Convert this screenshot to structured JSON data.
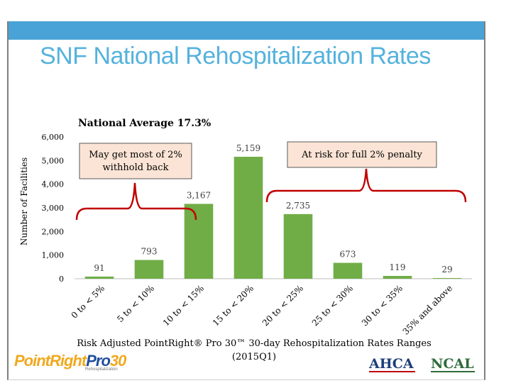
{
  "slide": {
    "title": "SNF National Rehospitalization Rates",
    "colors": {
      "band": "#4aa3d6",
      "title": "#55b2dd",
      "bar": "#70ad47",
      "bracket": "#c00000",
      "callout_fill": "#fbe4d5"
    }
  },
  "logos": {
    "pointright_main": "PointRight",
    "pointright_pro": "Pro",
    "pointright_num": "30",
    "pointright_sub": "Rehospitalization",
    "ahca": "AHCA",
    "ncal": "NCAL"
  },
  "chart_data": {
    "type": "bar",
    "title": "National Average 17.3%",
    "xlabel": "Risk Adjusted PointRight® Pro 30™ 30-day Rehospitalization Rates Ranges",
    "xlabel_sub": "(2015Q1)",
    "ylabel": "Number of Facilities",
    "ylim": [
      0,
      6000
    ],
    "yticks": [
      0,
      1000,
      2000,
      3000,
      4000,
      5000,
      6000
    ],
    "ytick_labels": [
      "0",
      "1,000",
      "2,000",
      "3,000",
      "4,000",
      "5,000",
      "6,000"
    ],
    "categories": [
      "0 to < 5%",
      "5 to < 10%",
      "10 to < 15%",
      "15 to < 20%",
      "20 to < 25%",
      "25 to < 30%",
      "30 to < 35%",
      "35% and above"
    ],
    "values": [
      91,
      793,
      3167,
      5159,
      2735,
      673,
      119,
      29
    ],
    "value_labels": [
      "91",
      "793",
      "3,167",
      "5,159",
      "2,735",
      "673",
      "119",
      "29"
    ],
    "annotations": [
      {
        "text_lines": [
          "May get most of 2%",
          "withhold back"
        ],
        "spans_categories": [
          0,
          2
        ]
      },
      {
        "text_lines": [
          "At risk for full 2% penalty"
        ],
        "spans_categories": [
          4,
          7
        ]
      }
    ]
  }
}
